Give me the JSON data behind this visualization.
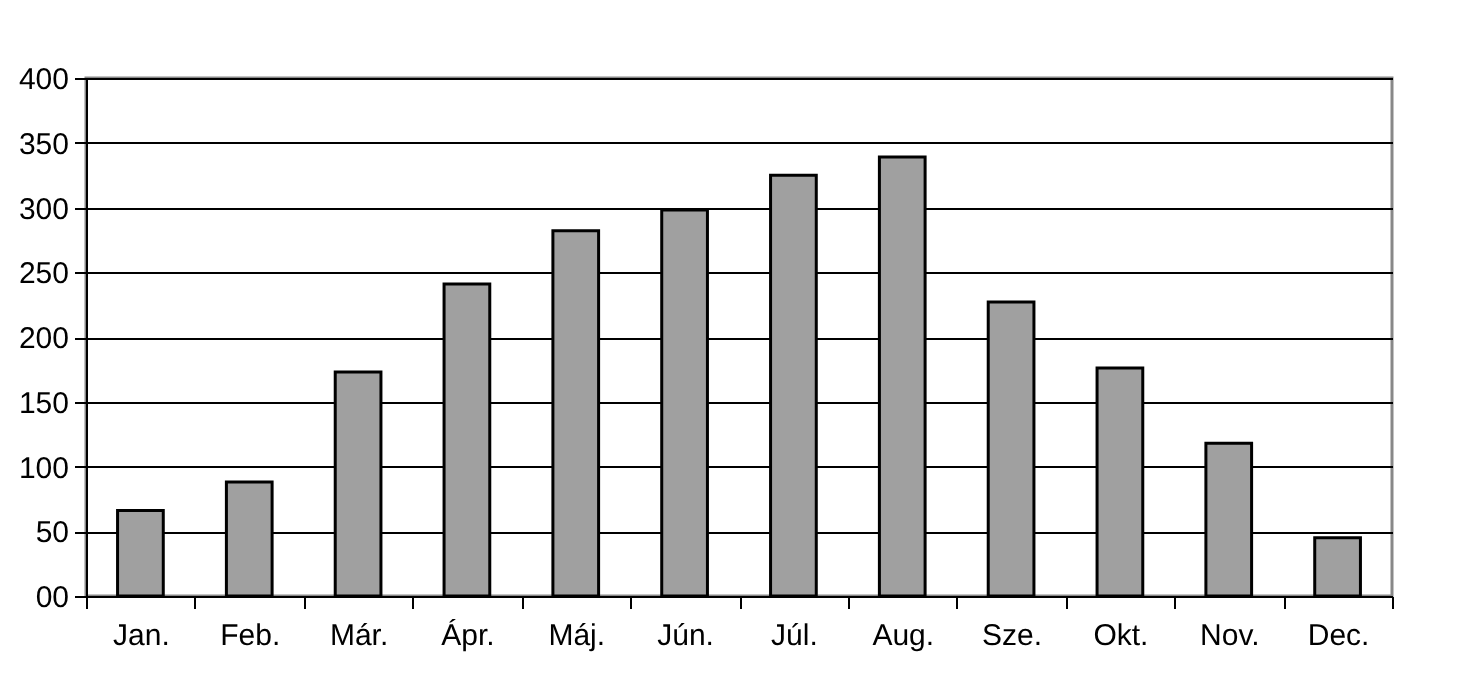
{
  "chart_data": {
    "type": "bar",
    "categories": [
      "Jan.",
      "Feb.",
      "Már.",
      "Ápr.",
      "Máj.",
      "Jún.",
      "Júl.",
      "Aug.",
      "Sze.",
      "Okt.",
      "Nov.",
      "Dec."
    ],
    "values": [
      66,
      88,
      173,
      241,
      282,
      298,
      325,
      339,
      227,
      176,
      118,
      45
    ],
    "color": "#a0a0a0",
    "ylim": [
      0,
      400
    ],
    "yticks": [
      {
        "value": 0,
        "label": "00"
      },
      50,
      100,
      150,
      200,
      250,
      300,
      350,
      400
    ],
    "grid": "y"
  }
}
